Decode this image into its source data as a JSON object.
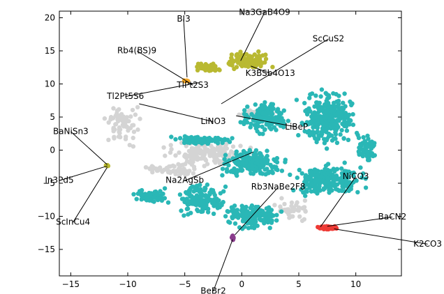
{
  "chart_data": {
    "type": "scatter",
    "title": "",
    "xlabel": "",
    "ylabel": "",
    "xlim": [
      -16,
      14
    ],
    "ylim": [
      -19,
      21
    ],
    "xticks": [
      "−15",
      "−10",
      "−5",
      "0",
      "5",
      "10"
    ],
    "xtick_values": [
      -15,
      -10,
      -5,
      0,
      5,
      10
    ],
    "yticks": [
      "20",
      "15",
      "10",
      "5",
      "0",
      "−5",
      "−10",
      "−15"
    ],
    "ytick_values": [
      20,
      15,
      10,
      5,
      0,
      -5,
      -10,
      -15
    ],
    "grid": false,
    "legend": "none",
    "colors": {
      "teal": "#2ab7b6",
      "gray": "#d4d4d4",
      "olive": "#b9b931",
      "red": "#ee3a35",
      "purple": "#8a3c8c",
      "orange": "#f5a623"
    },
    "clusters": [
      {
        "color": "teal",
        "cx": 7.5,
        "cy": 4.5,
        "rx": 3.2,
        "ry": 5.5,
        "n": 260
      },
      {
        "color": "teal",
        "cx": 2.0,
        "cy": 5.0,
        "rx": 2.5,
        "ry": 3.0,
        "n": 160
      },
      {
        "color": "teal",
        "cx": -3.5,
        "cy": 1.5,
        "rx": 3.2,
        "ry": 0.8,
        "n": 90
      },
      {
        "color": "teal",
        "cx": 1.0,
        "cy": -2.0,
        "rx": 3.5,
        "ry": 2.5,
        "n": 190
      },
      {
        "color": "teal",
        "cx": 7.5,
        "cy": -4.5,
        "rx": 4.0,
        "ry": 3.0,
        "n": 210
      },
      {
        "color": "teal",
        "cx": -3.5,
        "cy": -7.5,
        "rx": 2.5,
        "ry": 3.0,
        "n": 150
      },
      {
        "color": "teal",
        "cx": 1.0,
        "cy": -10.0,
        "rx": 3.0,
        "ry": 2.5,
        "n": 150
      },
      {
        "color": "teal",
        "cx": -8.0,
        "cy": -7.0,
        "rx": 2.0,
        "ry": 1.5,
        "n": 60
      },
      {
        "color": "teal",
        "cx": 11.0,
        "cy": 0.5,
        "rx": 1.2,
        "ry": 3.0,
        "n": 60
      },
      {
        "color": "gray",
        "cx": -3.0,
        "cy": -0.5,
        "rx": 5.0,
        "ry": 2.0,
        "n": 150
      },
      {
        "color": "gray",
        "cx": -10.5,
        "cy": 4.0,
        "rx": 2.0,
        "ry": 4.0,
        "n": 70
      },
      {
        "color": "gray",
        "cx": 1.5,
        "cy": 5.5,
        "rx": 2.0,
        "ry": 1.0,
        "n": 50
      },
      {
        "color": "gray",
        "cx": -6.0,
        "cy": -3.0,
        "rx": 3.0,
        "ry": 1.2,
        "n": 60
      },
      {
        "color": "gray",
        "cx": 4.5,
        "cy": -9.0,
        "rx": 2.0,
        "ry": 2.0,
        "n": 40
      },
      {
        "color": "olive",
        "cx": 0.5,
        "cy": 13.5,
        "rx": 2.5,
        "ry": 1.6,
        "n": 120
      },
      {
        "color": "olive",
        "cx": -3.0,
        "cy": 12.5,
        "rx": 1.5,
        "ry": 1.0,
        "n": 40
      },
      {
        "color": "red",
        "cx": 7.5,
        "cy": -11.7,
        "rx": 1.2,
        "ry": 0.35,
        "n": 80
      },
      {
        "color": "purple",
        "cx": -0.8,
        "cy": -13.2,
        "rx": 0.12,
        "ry": 0.45,
        "n": 14
      },
      {
        "color": "orange",
        "cx": -4.9,
        "cy": 10.5,
        "rx": 0.25,
        "ry": 0.2,
        "n": 6
      },
      {
        "color": "olive",
        "cx": -11.8,
        "cy": -2.3,
        "rx": 0.2,
        "ry": 0.2,
        "n": 5
      }
    ],
    "annotations": [
      {
        "label": "BI3",
        "text_x": -5.1,
        "text_y": 19.8,
        "point_x": -4.8,
        "point_y": 11.0
      },
      {
        "label": "Na3GaB4O9",
        "text_x": 2.0,
        "text_y": 20.8,
        "point_x": -0.1,
        "point_y": 13.5
      },
      {
        "label": "Rb4(BS)9",
        "text_x": -9.2,
        "text_y": 15.0,
        "point_x": -4.9,
        "point_y": 10.5
      },
      {
        "label": "ScCuS2",
        "text_x": 7.6,
        "text_y": 16.8,
        "point_x": -1.8,
        "point_y": 7.0
      },
      {
        "label": "K3BSb4O13",
        "text_x": 2.5,
        "text_y": 11.6,
        "point_x": 0.8,
        "point_y": 12.7
      },
      {
        "label": "TlPt2S3",
        "text_x": -4.3,
        "text_y": 9.8,
        "point_x": -4.9,
        "point_y": 10.5
      },
      {
        "label": "Tl2Pt5S6",
        "text_x": -10.2,
        "text_y": 8.1,
        "point_x": -3.8,
        "point_y": 10.2
      },
      {
        "label": "LiNO3",
        "text_x": -2.5,
        "text_y": 4.3,
        "point_x": -9.0,
        "point_y": 7.0
      },
      {
        "label": "LiBeP",
        "text_x": 4.8,
        "text_y": 3.5,
        "point_x": -0.5,
        "point_y": 5.2
      },
      {
        "label": "BaNiSn3",
        "text_x": -15.0,
        "text_y": 2.8,
        "point_x": -11.8,
        "point_y": -2.2
      },
      {
        "label": "In3Pd5",
        "text_x": -16.0,
        "text_y": -4.6,
        "point_x": -11.8,
        "point_y": -2.4
      },
      {
        "label": "ScInCu4",
        "text_x": -14.8,
        "text_y": -10.9,
        "point_x": -11.8,
        "point_y": -2.6
      },
      {
        "label": "Na2AgSb",
        "text_x": -5.0,
        "text_y": -4.6,
        "point_x": 1.0,
        "point_y": -0.3
      },
      {
        "label": "Rb3NaBe2F8",
        "text_x": 3.2,
        "text_y": -5.6,
        "point_x": -0.6,
        "point_y": -12.8
      },
      {
        "label": "NiCO3",
        "text_x": 10.0,
        "text_y": -4.0,
        "point_x": 6.9,
        "point_y": -11.6
      },
      {
        "label": "BaCN2",
        "text_x": 13.2,
        "text_y": -10.1,
        "point_x": 7.5,
        "point_y": -11.5
      },
      {
        "label": "K2CO3",
        "text_x": 16.3,
        "text_y": -14.2,
        "point_x": 8.1,
        "point_y": -11.9
      },
      {
        "label": "BeBr2",
        "text_x": -2.5,
        "text_y": -22.5,
        "point_x": -0.8,
        "point_y": -13.5
      }
    ]
  }
}
